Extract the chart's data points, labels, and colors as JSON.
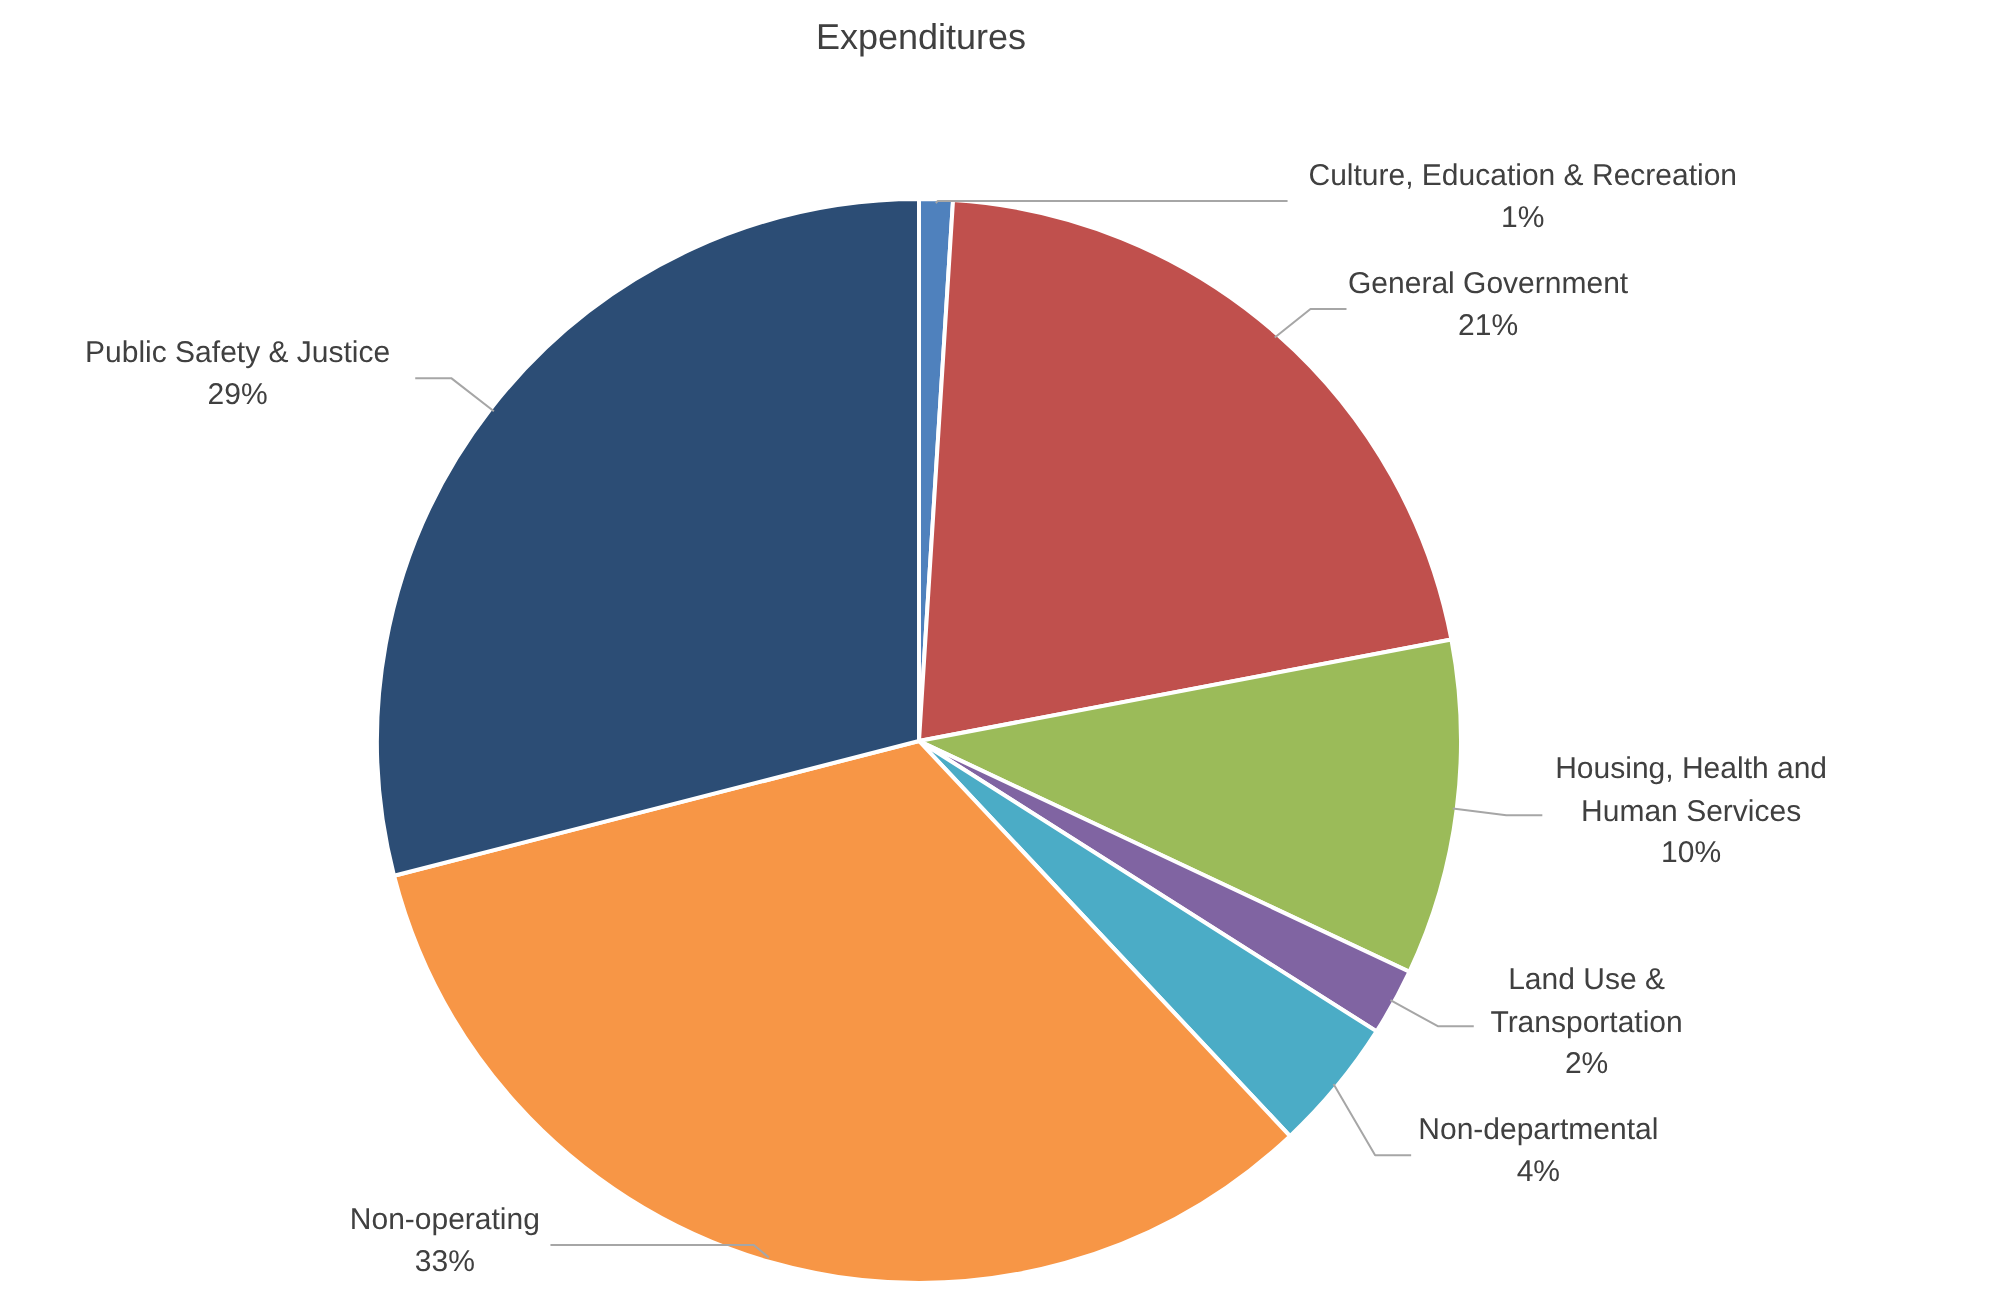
{
  "chart_data": {
    "type": "pie",
    "title": "Expenditures",
    "categories": [
      "Culture, Education & Recreation",
      "General Government",
      "Housing, Health and\nHuman Services",
      "Land Use &\nTransportation",
      "Non-departmental",
      "Non-operating",
      "Public Safety & Justice"
    ],
    "values": [
      1,
      21,
      10,
      2,
      4,
      33,
      29
    ],
    "value_labels": [
      "1%",
      "21%",
      "10%",
      "2%",
      "4%",
      "33%",
      "29%"
    ],
    "colors": [
      "#4f81bd",
      "#c0504d",
      "#9bbb59",
      "#8064a2",
      "#4bacc6",
      "#f79646",
      "#2c4d75"
    ]
  }
}
